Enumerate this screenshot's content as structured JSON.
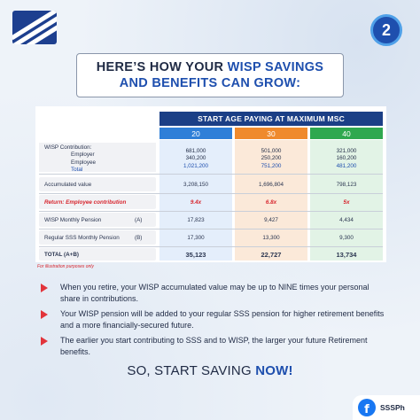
{
  "page_number": "2",
  "headline": {
    "line1_prefix": "HERE’S HOW YOUR ",
    "line1_highlight": "WISP SAVINGS",
    "line2_highlight": "AND BENEFITS CAN GROW:"
  },
  "table": {
    "header": "START AGE PAYING AT MAXIMUM MSC",
    "ages": [
      "20",
      "30",
      "40"
    ],
    "contribution": {
      "label": "WISP Contribution:",
      "employer_label": "Employer",
      "employee_label": "Employee",
      "total_label": "Total",
      "employer": [
        "681,000",
        "501,000",
        "321,000"
      ],
      "employee": [
        "340,200",
        "250,200",
        "160,200"
      ],
      "total": [
        "1,021,200",
        "751,200",
        "481,200"
      ]
    },
    "accumulated": {
      "label": "Accumulated value",
      "values": [
        "3,208,150",
        "1,696,804",
        "798,123"
      ]
    },
    "return": {
      "label": "Return: Employee contribution",
      "values": [
        "9.4x",
        "6.8x",
        "5x"
      ]
    },
    "wisp_pension": {
      "label": "WISP Monthly Pension",
      "tag": "(A)",
      "values": [
        "17,823",
        "9,427",
        "4,434"
      ]
    },
    "sss_pension": {
      "label": "Regular SSS Monthly Pension",
      "tag": "(B)",
      "values": [
        "17,300",
        "13,300",
        "9,300"
      ]
    },
    "total_row": {
      "label": "TOTAL (A+B)",
      "values": [
        "35,123",
        "22,727",
        "13,734"
      ]
    }
  },
  "note": "For illustration purposes only",
  "bullets": [
    "When you retire, your WISP accumulated value may be up to NINE times your personal share in contributions.",
    "Your WISP pension will be added to your regular SSS pension for higher retirement benefits and a more financially-secured future.",
    "The earlier you start contributing to SSS and to WISP, the larger your future Retirement benefits."
  ],
  "cta": {
    "prefix": "SO, START SAVING ",
    "strong": "NOW!"
  },
  "social": {
    "icon": "facebook-icon",
    "handle": "SSSPh"
  },
  "colors": {
    "navy": "#1b3f86",
    "age20": "#2f7fd8",
    "age30": "#ef8a2d",
    "age40": "#2fa84f",
    "accent_red": "#d7262e"
  }
}
